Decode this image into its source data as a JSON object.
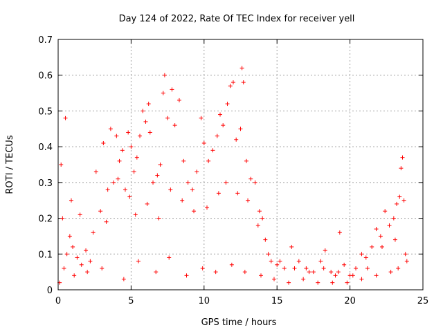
{
  "chart_data": {
    "type": "scatter",
    "title": "Day 124 of 2022, Rate Of TEC Index for receiver yell",
    "xlabel": "GPS time / hours",
    "ylabel": "ROTI / TECUs",
    "xlim": [
      0,
      25
    ],
    "ylim": [
      0,
      0.7
    ],
    "x_ticks": [
      0,
      5,
      10,
      15,
      20,
      25
    ],
    "y_ticks": [
      0,
      0.1,
      0.2,
      0.3,
      0.4,
      0.5,
      0.6,
      0.7
    ],
    "x_tick_labels": [
      "0",
      "5",
      "10",
      "15",
      "20",
      "25"
    ],
    "y_tick_labels": [
      "0",
      "0.1",
      "0.2",
      "0.3",
      "0.4",
      "0.5",
      "0.6",
      "0.7"
    ],
    "grid": true,
    "marker": "+",
    "marker_color": "#ff0000",
    "series": [
      {
        "points": [
          [
            0.1,
            0.02
          ],
          [
            0.2,
            0.35
          ],
          [
            0.3,
            0.2
          ],
          [
            0.5,
            0.48
          ],
          [
            0.6,
            0.1
          ],
          [
            0.8,
            0.15
          ],
          [
            1.0,
            0.12
          ],
          [
            1.3,
            0.09
          ],
          [
            1.6,
            0.07
          ],
          [
            1.9,
            0.11
          ],
          [
            2.2,
            0.08
          ],
          [
            2.6,
            0.33
          ],
          [
            2.9,
            0.22
          ],
          [
            3.1,
            0.41
          ],
          [
            3.3,
            0.19
          ],
          [
            3.6,
            0.45
          ],
          [
            3.8,
            0.3
          ],
          [
            4.0,
            0.43
          ],
          [
            4.2,
            0.36
          ],
          [
            4.4,
            0.39
          ],
          [
            4.6,
            0.28
          ],
          [
            4.8,
            0.44
          ],
          [
            5.0,
            0.4
          ],
          [
            5.2,
            0.33
          ],
          [
            5.4,
            0.37
          ],
          [
            5.6,
            0.43
          ],
          [
            5.8,
            0.5
          ],
          [
            6.0,
            0.47
          ],
          [
            6.2,
            0.52
          ],
          [
            6.3,
            0.44
          ],
          [
            6.5,
            0.3
          ],
          [
            6.8,
            0.32
          ],
          [
            7.0,
            0.35
          ],
          [
            7.2,
            0.55
          ],
          [
            7.3,
            0.6
          ],
          [
            7.5,
            0.48
          ],
          [
            7.8,
            0.56
          ],
          [
            8.0,
            0.46
          ],
          [
            8.3,
            0.53
          ],
          [
            8.6,
            0.36
          ],
          [
            8.9,
            0.3
          ],
          [
            9.2,
            0.28
          ],
          [
            9.5,
            0.33
          ],
          [
            9.8,
            0.48
          ],
          [
            10.0,
            0.41
          ],
          [
            10.3,
            0.36
          ],
          [
            10.6,
            0.39
          ],
          [
            10.9,
            0.43
          ],
          [
            11.1,
            0.49
          ],
          [
            11.3,
            0.46
          ],
          [
            11.6,
            0.52
          ],
          [
            11.8,
            0.57
          ],
          [
            12.0,
            0.58
          ],
          [
            12.2,
            0.42
          ],
          [
            12.5,
            0.45
          ],
          [
            12.6,
            0.62
          ],
          [
            12.7,
            0.58
          ],
          [
            12.9,
            0.36
          ],
          [
            13.2,
            0.31
          ],
          [
            13.5,
            0.3
          ],
          [
            13.8,
            0.22
          ],
          [
            14.0,
            0.2
          ],
          [
            14.2,
            0.14
          ],
          [
            14.6,
            0.08
          ],
          [
            15.0,
            0.07
          ],
          [
            15.5,
            0.06
          ],
          [
            16.0,
            0.12
          ],
          [
            16.5,
            0.08
          ],
          [
            17.0,
            0.06
          ],
          [
            17.5,
            0.05
          ],
          [
            18.0,
            0.08
          ],
          [
            18.3,
            0.11
          ],
          [
            18.7,
            0.05
          ],
          [
            19.0,
            0.04
          ],
          [
            19.3,
            0.16
          ],
          [
            19.6,
            0.07
          ],
          [
            20.0,
            0.04
          ],
          [
            20.4,
            0.06
          ],
          [
            20.8,
            0.1
          ],
          [
            21.1,
            0.09
          ],
          [
            21.5,
            0.12
          ],
          [
            21.8,
            0.17
          ],
          [
            22.1,
            0.15
          ],
          [
            22.4,
            0.22
          ],
          [
            22.7,
            0.18
          ],
          [
            23.0,
            0.2
          ],
          [
            23.2,
            0.24
          ],
          [
            23.4,
            0.26
          ],
          [
            23.5,
            0.34
          ],
          [
            23.6,
            0.37
          ],
          [
            23.7,
            0.25
          ],
          [
            23.8,
            0.1
          ],
          [
            0.4,
            0.06
          ],
          [
            1.1,
            0.04
          ],
          [
            2.0,
            0.05
          ],
          [
            3.0,
            0.06
          ],
          [
            4.5,
            0.03
          ],
          [
            5.5,
            0.08
          ],
          [
            6.7,
            0.05
          ],
          [
            7.6,
            0.09
          ],
          [
            8.8,
            0.04
          ],
          [
            9.9,
            0.06
          ],
          [
            10.8,
            0.05
          ],
          [
            11.9,
            0.07
          ],
          [
            12.8,
            0.05
          ],
          [
            13.9,
            0.04
          ],
          [
            14.8,
            0.03
          ],
          [
            15.8,
            0.02
          ],
          [
            16.8,
            0.03
          ],
          [
            17.8,
            0.02
          ],
          [
            18.8,
            0.02
          ],
          [
            19.8,
            0.02
          ],
          [
            20.8,
            0.03
          ],
          [
            21.8,
            0.04
          ],
          [
            22.8,
            0.05
          ],
          [
            23.3,
            0.06
          ],
          [
            0.9,
            0.25
          ],
          [
            1.5,
            0.21
          ],
          [
            2.4,
            0.16
          ],
          [
            3.4,
            0.28
          ],
          [
            4.1,
            0.31
          ],
          [
            4.9,
            0.26
          ],
          [
            5.3,
            0.21
          ],
          [
            6.1,
            0.24
          ],
          [
            6.9,
            0.2
          ],
          [
            7.7,
            0.28
          ],
          [
            8.5,
            0.25
          ],
          [
            9.3,
            0.22
          ],
          [
            10.2,
            0.23
          ],
          [
            11.0,
            0.27
          ],
          [
            11.5,
            0.3
          ],
          [
            12.3,
            0.27
          ],
          [
            13.0,
            0.25
          ],
          [
            13.7,
            0.18
          ],
          [
            14.4,
            0.1
          ],
          [
            15.2,
            0.08
          ],
          [
            16.2,
            0.06
          ],
          [
            17.2,
            0.05
          ],
          [
            18.2,
            0.06
          ],
          [
            19.2,
            0.05
          ],
          [
            20.2,
            0.04
          ],
          [
            21.2,
            0.06
          ],
          [
            22.2,
            0.12
          ],
          [
            23.1,
            0.14
          ],
          [
            23.9,
            0.08
          ]
        ]
      }
    ]
  }
}
